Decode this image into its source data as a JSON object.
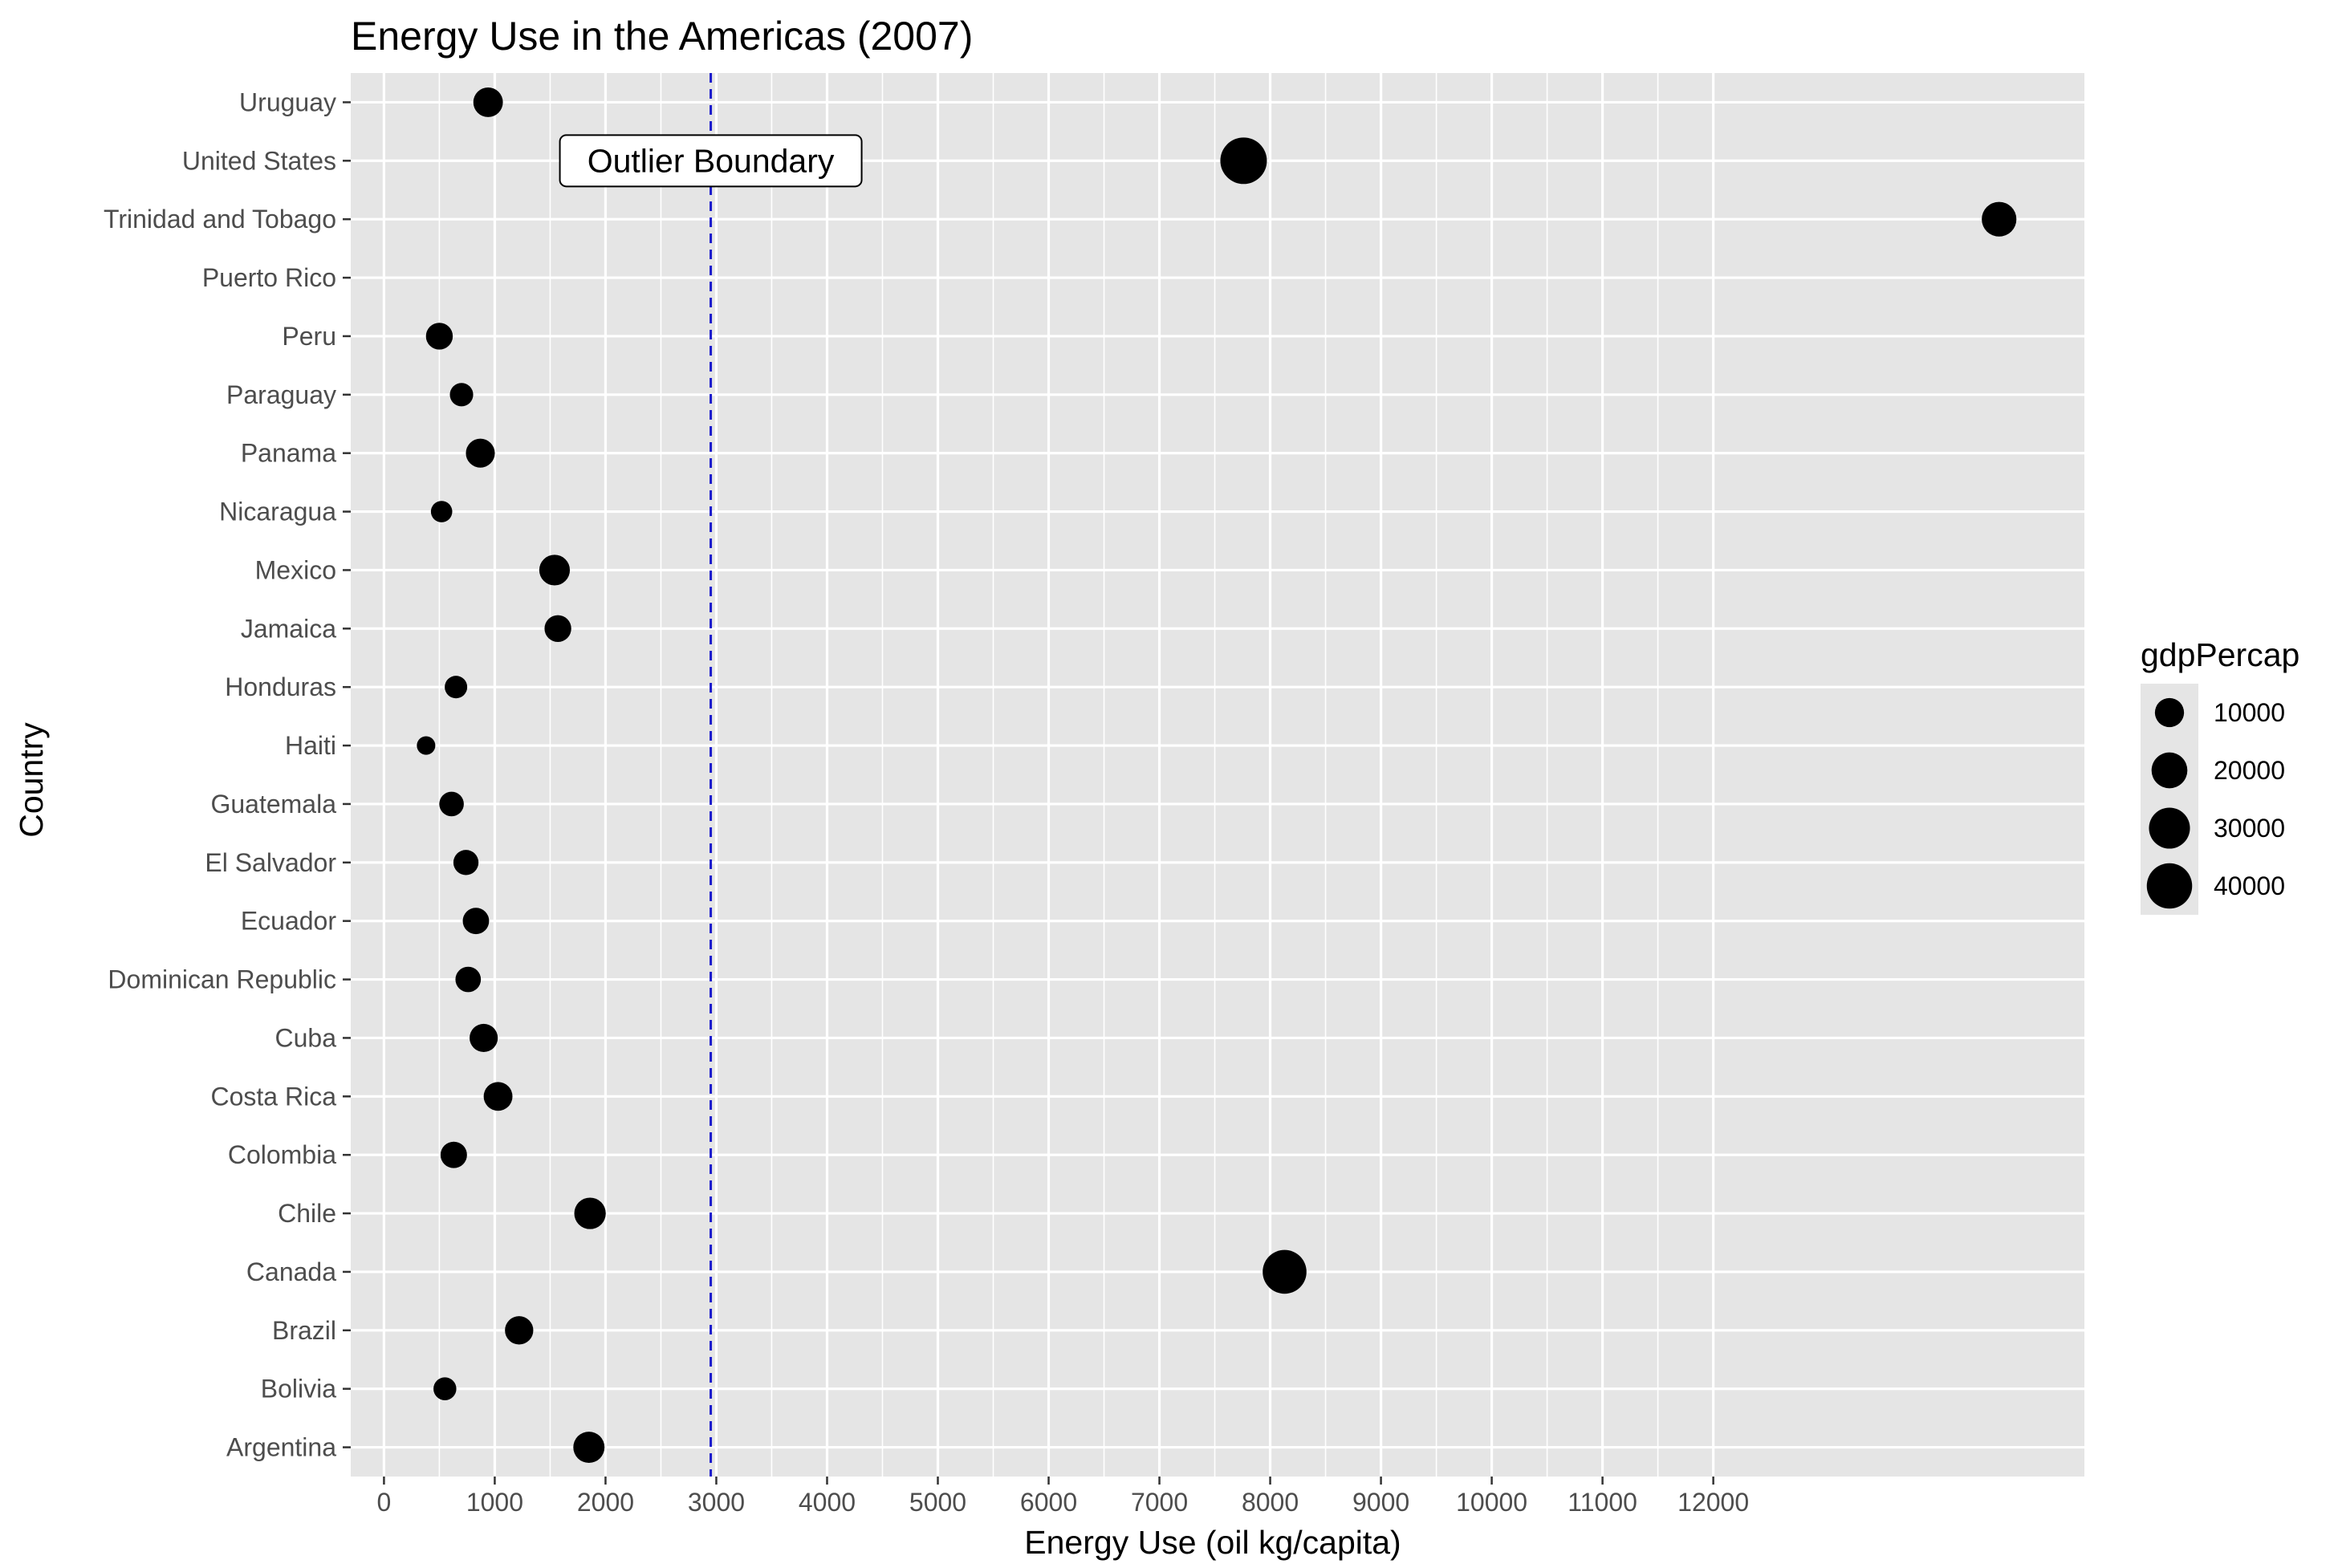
{
  "chart_data": {
    "type": "scatter",
    "title": "Energy Use in the Americas (2007)",
    "xlabel": "Energy Use (oil kg/capita)",
    "ylabel": "Country",
    "xlim": [
      -300,
      15350
    ],
    "xticks": [
      0,
      1000,
      2000,
      3000,
      4000,
      5000,
      6000,
      7000,
      8000,
      9000,
      10000,
      11000,
      12000
    ],
    "grid": true,
    "categories": [
      "Argentina",
      "Bolivia",
      "Brazil",
      "Canada",
      "Chile",
      "Colombia",
      "Costa Rica",
      "Cuba",
      "Dominican Republic",
      "Ecuador",
      "El Salvador",
      "Guatemala",
      "Haiti",
      "Honduras",
      "Jamaica",
      "Mexico",
      "Nicaragua",
      "Panama",
      "Paraguay",
      "Peru",
      "Puerto Rico",
      "Trinidad and Tobago",
      "United States",
      "Uruguay"
    ],
    "points": [
      {
        "country": "Argentina",
        "x": 1850,
        "gdpPercap": 12779
      },
      {
        "country": "Bolivia",
        "x": 550,
        "gdpPercap": 3822
      },
      {
        "country": "Brazil",
        "x": 1220,
        "gdpPercap": 9066
      },
      {
        "country": "Canada",
        "x": 8130,
        "gdpPercap": 36319
      },
      {
        "country": "Chile",
        "x": 1860,
        "gdpPercap": 13172
      },
      {
        "country": "Colombia",
        "x": 630,
        "gdpPercap": 7007
      },
      {
        "country": "Costa Rica",
        "x": 1030,
        "gdpPercap": 9645
      },
      {
        "country": "Cuba",
        "x": 900,
        "gdpPercap": 8948
      },
      {
        "country": "Dominican Republic",
        "x": 760,
        "gdpPercap": 6025
      },
      {
        "country": "Ecuador",
        "x": 830,
        "gdpPercap": 6873
      },
      {
        "country": "El Salvador",
        "x": 740,
        "gdpPercap": 5728
      },
      {
        "country": "Guatemala",
        "x": 610,
        "gdpPercap": 5186
      },
      {
        "country": "Haiti",
        "x": 380,
        "gdpPercap": 1202
      },
      {
        "country": "Honduras",
        "x": 650,
        "gdpPercap": 3548
      },
      {
        "country": "Jamaica",
        "x": 1570,
        "gdpPercap": 7321
      },
      {
        "country": "Mexico",
        "x": 1540,
        "gdpPercap": 11978
      },
      {
        "country": "Nicaragua",
        "x": 520,
        "gdpPercap": 2749
      },
      {
        "country": "Panama",
        "x": 870,
        "gdpPercap": 9809
      },
      {
        "country": "Paraguay",
        "x": 700,
        "gdpPercap": 4173
      },
      {
        "country": "Peru",
        "x": 500,
        "gdpPercap": 7409
      },
      {
        "country": "Trinidad and Tobago",
        "x": 14580,
        "gdpPercap": 18009
      },
      {
        "country": "United States",
        "x": 7760,
        "gdpPercap": 42952
      },
      {
        "country": "Uruguay",
        "x": 940,
        "gdpPercap": 10611
      }
    ],
    "reference_line": {
      "x": 2950,
      "color": "#1a1acc",
      "style": "dashed"
    },
    "annotation": {
      "text": "Outlier Boundary",
      "x": 2950,
      "y": "United States"
    },
    "legend": {
      "title": "gdpPercap",
      "position": "right",
      "entries": [
        {
          "label": "10000",
          "value": 10000
        },
        {
          "label": "20000",
          "value": 20000
        },
        {
          "label": "30000",
          "value": 30000
        },
        {
          "label": "40000",
          "value": 40000
        }
      ]
    },
    "colors": {
      "panel": "#e5e5e5",
      "grid": "#ffffff",
      "point": "#000000",
      "tick_text": "#4d4d4d"
    }
  }
}
